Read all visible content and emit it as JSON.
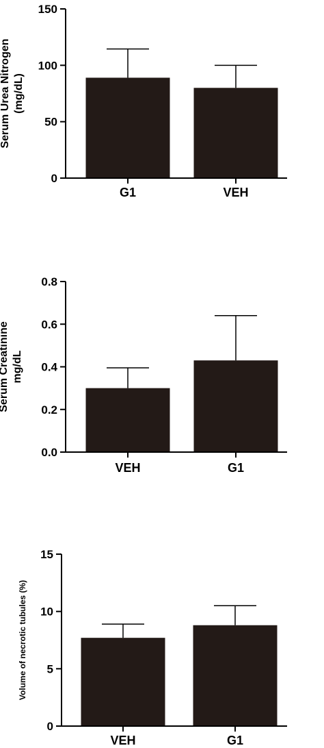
{
  "colors": {
    "bar": "#231a17",
    "axis": "#000000"
  },
  "chart_data": [
    {
      "type": "bar",
      "title": "",
      "ylabel_lines": [
        "Serum Urea Nitrogen",
        "(mg/dL)"
      ],
      "categories": [
        "G1",
        "VEH"
      ],
      "values": [
        89,
        80
      ],
      "errors": [
        25.5,
        20
      ],
      "ylim": [
        0,
        150
      ],
      "yticks": [
        0,
        50,
        100,
        150
      ],
      "ytick_labels": [
        "0",
        "50",
        "100",
        "150"
      ]
    },
    {
      "type": "bar",
      "title": "",
      "ylabel_lines": [
        "Serum  Creatinine",
        "mg/dL"
      ],
      "categories": [
        "VEH",
        "G1"
      ],
      "values": [
        0.3,
        0.43
      ],
      "errors": [
        0.095,
        0.21
      ],
      "ylim": [
        0,
        0.8
      ],
      "yticks": [
        0.0,
        0.2,
        0.4,
        0.6,
        0.8
      ],
      "ytick_labels": [
        "0.0",
        "0.2",
        "0.4",
        "0.6",
        "0.8"
      ]
    },
    {
      "type": "bar",
      "title": "",
      "ylabel_lines": [
        "Volume of necrotic tubules (%)"
      ],
      "categories": [
        "VEH",
        "G1"
      ],
      "values": [
        7.7,
        8.8
      ],
      "errors": [
        1.2,
        1.7
      ],
      "ylim": [
        0,
        15
      ],
      "yticks": [
        0,
        5,
        10,
        15
      ],
      "ytick_labels": [
        "0",
        "5",
        "10",
        "15"
      ]
    }
  ]
}
